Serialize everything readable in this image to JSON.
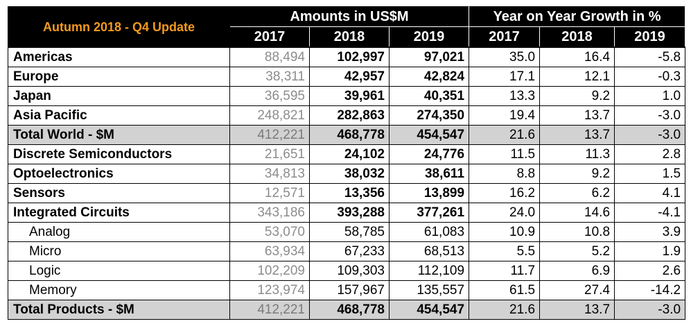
{
  "chart_data": {
    "type": "table",
    "title": "Autumn 2018 - Q4 Update",
    "column_groups": [
      {
        "label": "Amounts in US$M",
        "years": [
          "2017",
          "2018",
          "2019"
        ]
      },
      {
        "label": "Year on Year Growth in %",
        "years": [
          "2017",
          "2018",
          "2019"
        ]
      }
    ],
    "rows": [
      {
        "label": "Americas",
        "style": "main",
        "amounts": [
          "88,494",
          "102,997",
          "97,021"
        ],
        "growth": [
          "35.0",
          "16.4",
          "-5.8"
        ]
      },
      {
        "label": "Europe",
        "style": "main",
        "amounts": [
          "38,311",
          "42,957",
          "42,824"
        ],
        "growth": [
          "17.1",
          "12.1",
          "-0.3"
        ]
      },
      {
        "label": "Japan",
        "style": "main",
        "amounts": [
          "36,595",
          "39,961",
          "40,351"
        ],
        "growth": [
          "13.3",
          "9.2",
          "1.0"
        ]
      },
      {
        "label": "Asia Pacific",
        "style": "main",
        "amounts": [
          "248,821",
          "282,863",
          "274,350"
        ],
        "growth": [
          "19.4",
          "13.7",
          "-3.0"
        ]
      },
      {
        "label": "Total World - $M",
        "style": "total",
        "amounts": [
          "412,221",
          "468,778",
          "454,547"
        ],
        "growth": [
          "21.6",
          "13.7",
          "-3.0"
        ]
      },
      {
        "label": "Discrete Semiconductors",
        "style": "main",
        "amounts": [
          "21,651",
          "24,102",
          "24,776"
        ],
        "growth": [
          "11.5",
          "11.3",
          "2.8"
        ]
      },
      {
        "label": "Optoelectronics",
        "style": "main",
        "amounts": [
          "34,813",
          "38,032",
          "38,611"
        ],
        "growth": [
          "8.8",
          "9.2",
          "1.5"
        ]
      },
      {
        "label": "Sensors",
        "style": "main",
        "amounts": [
          "12,571",
          "13,356",
          "13,899"
        ],
        "growth": [
          "16.2",
          "6.2",
          "4.1"
        ]
      },
      {
        "label": "Integrated Circuits",
        "style": "main",
        "amounts": [
          "343,186",
          "393,288",
          "377,261"
        ],
        "growth": [
          "24.0",
          "14.6",
          "-4.1"
        ]
      },
      {
        "label": "Analog",
        "style": "sub",
        "amounts": [
          "53,070",
          "58,785",
          "61,083"
        ],
        "growth": [
          "10.9",
          "10.8",
          "3.9"
        ]
      },
      {
        "label": "Micro",
        "style": "sub",
        "amounts": [
          "63,934",
          "67,233",
          "68,513"
        ],
        "growth": [
          "5.5",
          "5.2",
          "1.9"
        ]
      },
      {
        "label": "Logic",
        "style": "sub",
        "amounts": [
          "102,209",
          "109,303",
          "112,109"
        ],
        "growth": [
          "11.7",
          "6.9",
          "2.6"
        ]
      },
      {
        "label": "Memory",
        "style": "sub",
        "amounts": [
          "123,974",
          "157,967",
          "135,557"
        ],
        "growth": [
          "61.5",
          "27.4",
          "-14.2"
        ]
      },
      {
        "label": "Total Products - $M",
        "style": "total",
        "amounts": [
          "412,221",
          "468,778",
          "454,547"
        ],
        "growth": [
          "21.6",
          "13.7",
          "-3.0"
        ]
      }
    ],
    "colors": {
      "header_bg": "#000000",
      "header_text": "#ffffff",
      "title_text": "#f39a1e",
      "total_row_bg": "#d2d2d2",
      "amount_2017_text": "#8c8c8c"
    }
  }
}
